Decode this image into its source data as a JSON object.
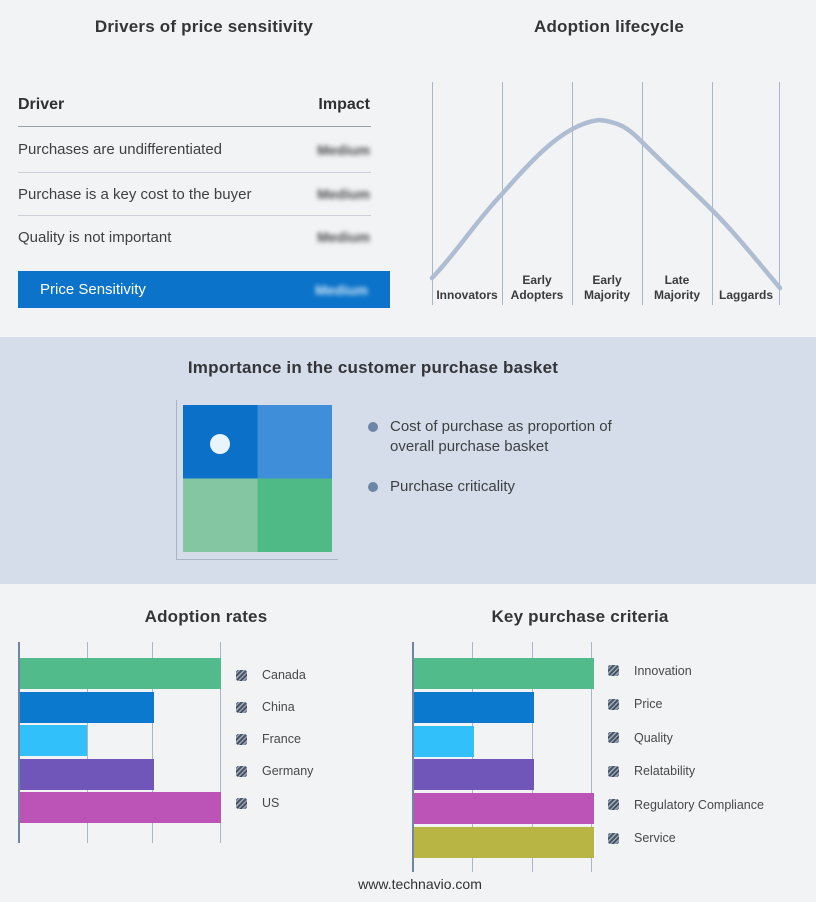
{
  "drivers_panel": {
    "title": "Drivers of price sensitivity",
    "columns": {
      "driver": "Driver",
      "impact": "Impact"
    },
    "rows": [
      {
        "driver": "Purchases are undifferentiated",
        "impact": "Medium"
      },
      {
        "driver": "Purchase is a key cost to the buyer",
        "impact": "Medium"
      },
      {
        "driver": "Quality is not important",
        "impact": "Medium"
      }
    ],
    "highlight_row": {
      "driver": "Price Sensitivity",
      "impact": "Medium"
    },
    "highlight_color": "#0b73c9",
    "impact_values_rendered_blurred": true
  },
  "basket_panel": {
    "title": "Importance in the customer purchase basket",
    "bullets": [
      "Cost of purchase as proportion of overall purchase basket",
      "Purchase criticality"
    ],
    "quadrant": {
      "top_left": "#0b70c7",
      "top_right": "#3e8ed9",
      "bottom_left": "#83c6a1",
      "bottom_right": "#50ba86",
      "dot": "#e9f4fb"
    }
  },
  "footer": {
    "url": "www.technavio.com"
  },
  "chart_data": [
    {
      "type": "line",
      "title": "Adoption lifecycle",
      "categories": [
        "Innovators",
        "Early Adopters",
        "Early Majority",
        "Late Majority",
        "Laggards"
      ],
      "color": "#aebdd2",
      "peak_stage": "Early Majority",
      "shape": "bell curve rising from Innovators, peaking just after the Early Majority boundary, falling to Laggards",
      "grid": "6 vertical stage-separator lines, no numeric axes"
    },
    {
      "type": "bar",
      "orientation": "horizontal",
      "title": "Adoption rates",
      "categories": [
        "Canada",
        "China",
        "France",
        "Germany",
        "US"
      ],
      "values": [
        3,
        2,
        1,
        2,
        3
      ],
      "xlim": [
        0,
        3
      ],
      "colors": [
        "#52bb8b",
        "#0b79cd",
        "#31c0fa",
        "#7056b8",
        "#bc54b7"
      ],
      "legend_position": "right",
      "grid": "vertical gridlines at 1, 2, 3 units; no numeric tick labels shown"
    },
    {
      "type": "bar",
      "orientation": "horizontal",
      "title": "Key purchase criteria",
      "categories": [
        "Innovation",
        "Price",
        "Quality",
        "Relatability",
        "Regulatory Compliance",
        "Service"
      ],
      "values": [
        3,
        2,
        1,
        2,
        3,
        3
      ],
      "xlim": [
        0,
        3
      ],
      "colors": [
        "#52bb8b",
        "#0b79cd",
        "#31c0fa",
        "#7056b8",
        "#bc54b7",
        "#b9b545"
      ],
      "legend_position": "right",
      "grid": "vertical gridlines at 1, 2, 3 units; no numeric tick labels shown"
    }
  ]
}
